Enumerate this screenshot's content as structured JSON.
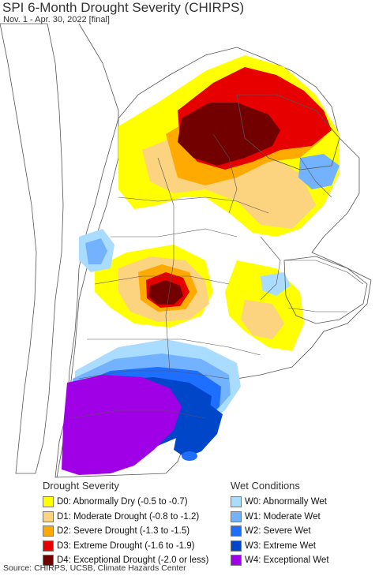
{
  "title": "SPI 6-Month Drought Severity (CHIRPS)",
  "subtitle": "Nov. 1 - Apr. 30, 2022 [final]",
  "legend": {
    "drought": {
      "heading": "Drought Severity",
      "items": [
        {
          "label": "D0: Abnormally Dry (-0.5 to -0.7)",
          "color": "#ffff00"
        },
        {
          "label": "D1: Moderate Drought (-0.8 to -1.2)",
          "color": "#fcd37f"
        },
        {
          "label": "D2: Severe Drought (-1.3 to -1.5)",
          "color": "#ffaa00"
        },
        {
          "label": "D3: Extreme Drought (-1.6 to -1.9)",
          "color": "#e60000"
        },
        {
          "label": "D4: Exceptional Drought (-2.0 or less)",
          "color": "#730000"
        }
      ]
    },
    "wet": {
      "heading": "Wet Conditions",
      "items": [
        {
          "label": "W0: Abnormally Wet",
          "color": "#aadcff"
        },
        {
          "label": "W1: Moderate Wet",
          "color": "#73b2ff"
        },
        {
          "label": "W2: Severe Wet",
          "color": "#1e6eff"
        },
        {
          "label": "W3: Extreme Wet",
          "color": "#0046c8"
        },
        {
          "label": "W4: Exceptional Wet",
          "color": "#a000e6"
        }
      ]
    }
  },
  "source": "Source: CHIRPS, UCSB, Climate Hazards Center"
}
